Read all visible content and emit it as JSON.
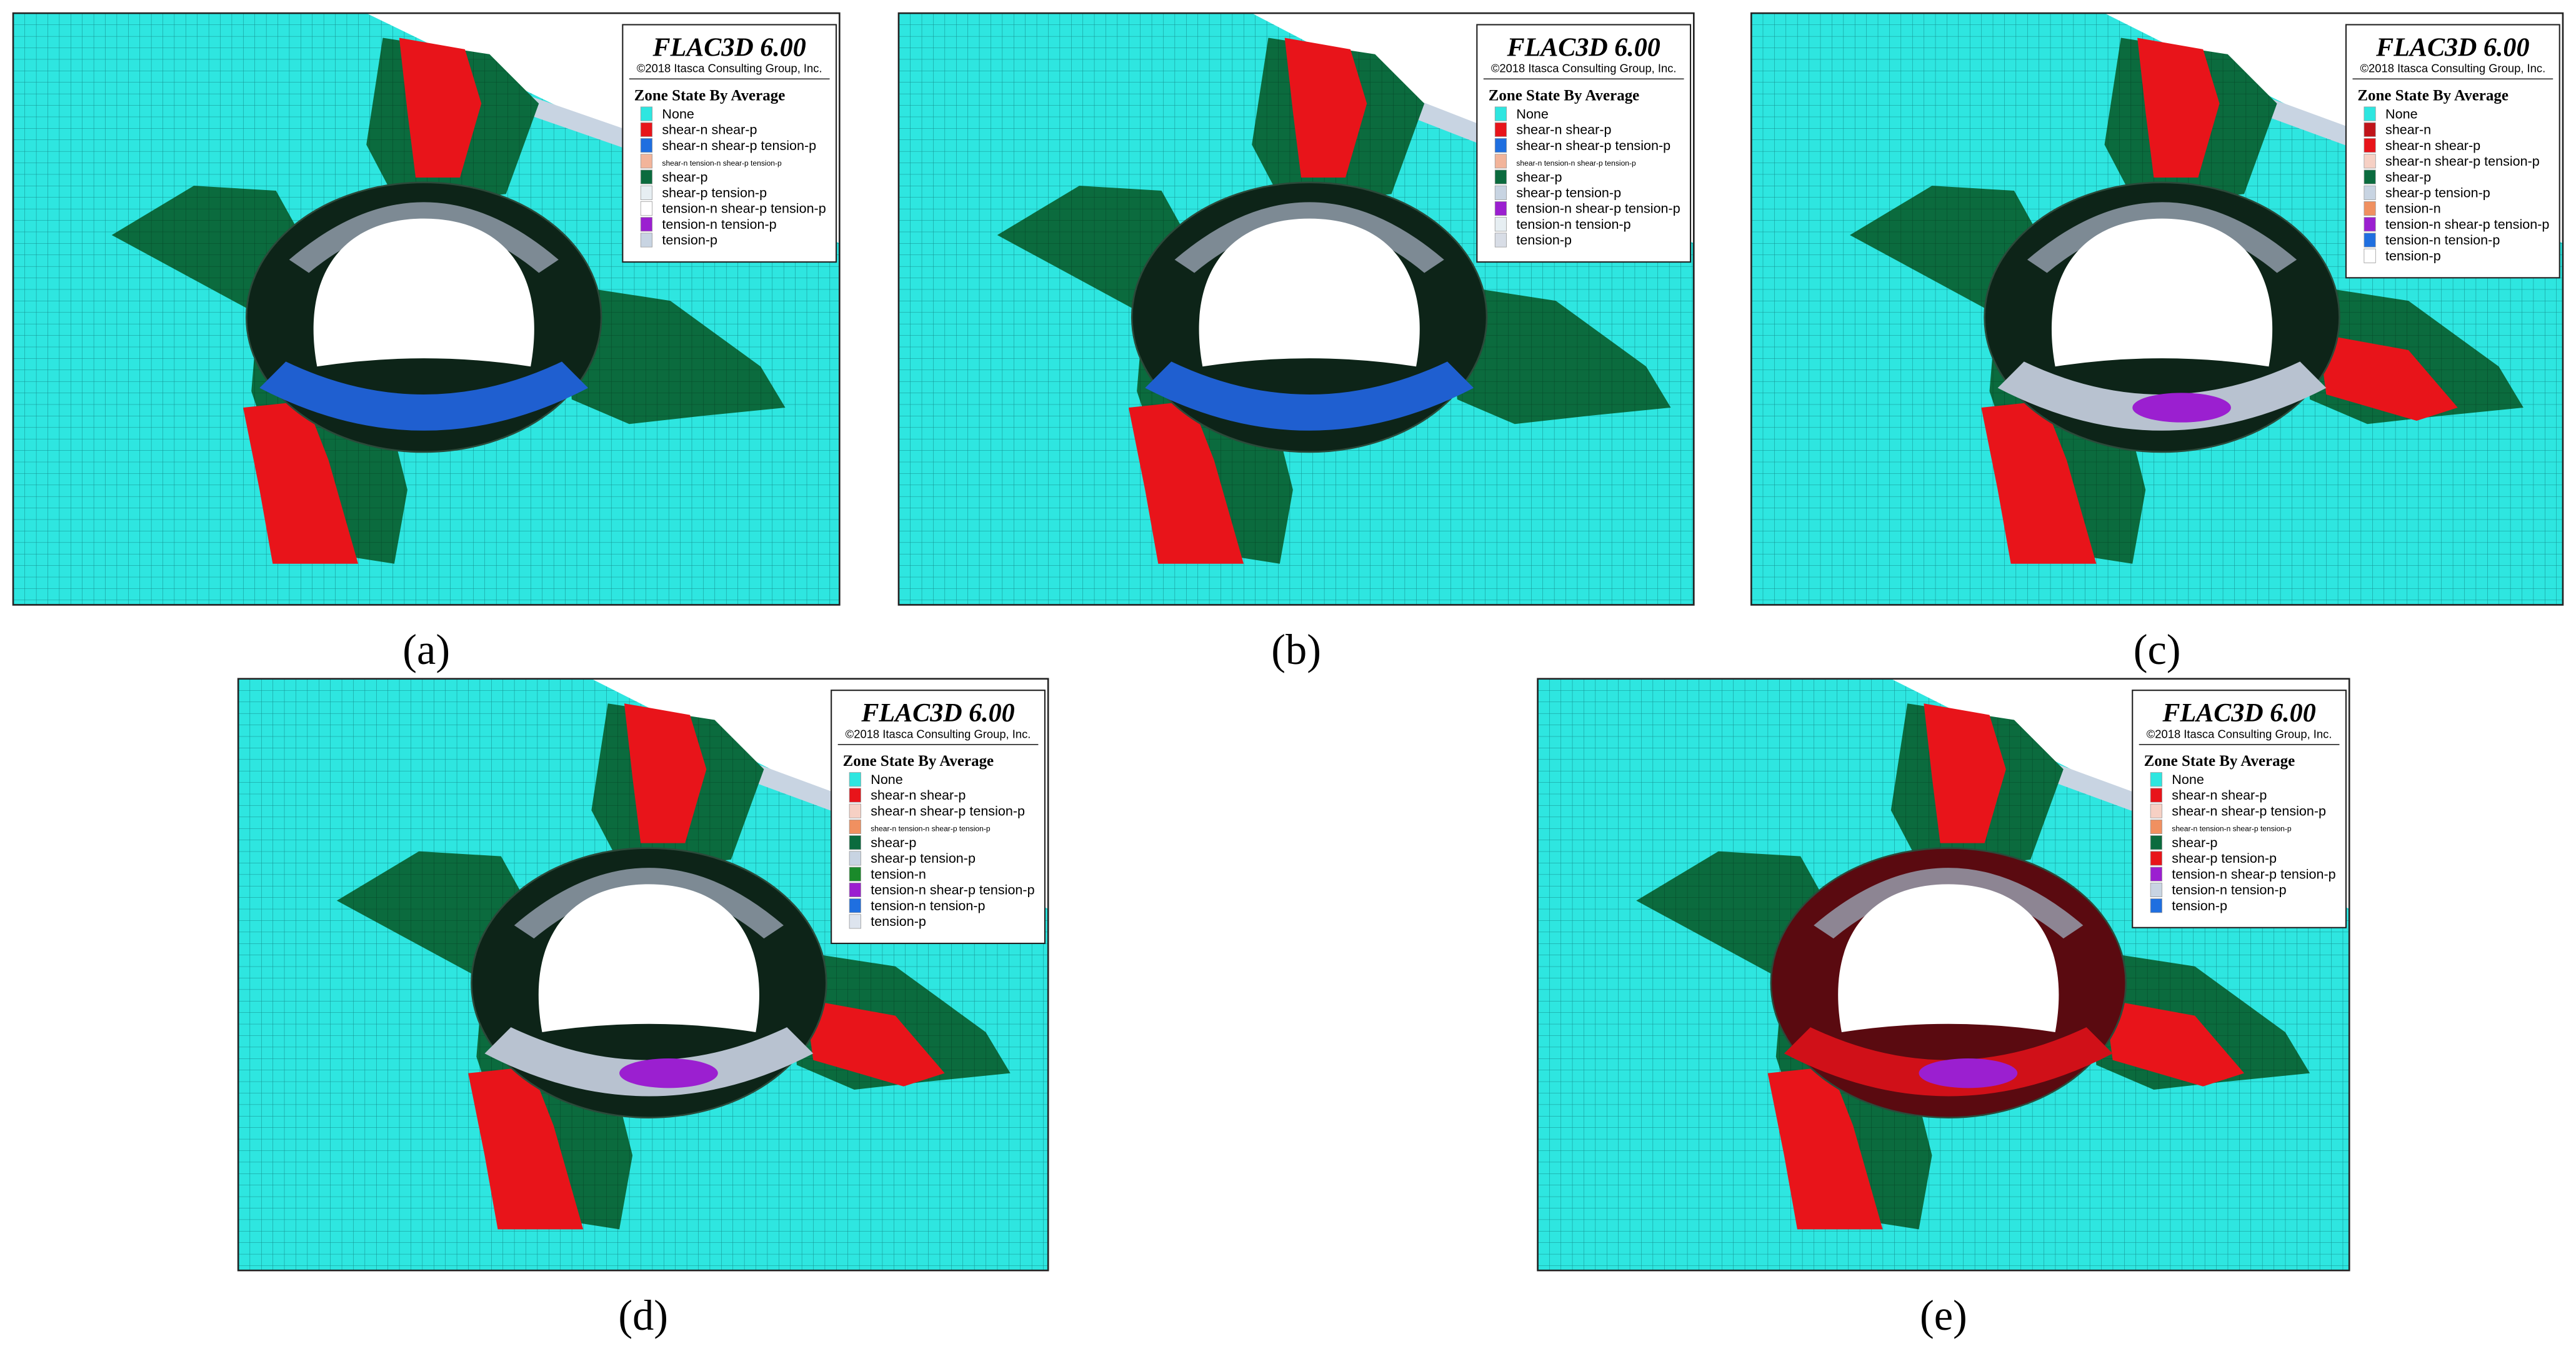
{
  "panels": [
    {
      "caption": "(a)",
      "title": "FLAC3D 6.00",
      "copyright": "©2018 Itasca Consulting Group, Inc.",
      "legend_title": "Zone State By Average",
      "legend": [
        {
          "label": "None",
          "color": "#2ee6e0"
        },
        {
          "label": "shear-n shear-p",
          "color": "#e8141a"
        },
        {
          "label": "shear-n shear-p tension-p",
          "color": "#1f6fe0"
        },
        {
          "label": "shear-n tension-n shear-p tension-p",
          "color": "#f2b49a"
        },
        {
          "label": "shear-p",
          "color": "#0b6b3e"
        },
        {
          "label": "shear-p tension-p",
          "color": "#e6eef2"
        },
        {
          "label": "tension-n shear-p tension-p",
          "color": "#ffffff"
        },
        {
          "label": "tension-n tension-p",
          "color": "#9b1fd0"
        },
        {
          "label": "tension-p",
          "color": "#c8d4e2"
        }
      ]
    },
    {
      "caption": "(b)",
      "title": "FLAC3D 6.00",
      "copyright": "©2018 Itasca Consulting Group, Inc.",
      "legend_title": "Zone State By Average",
      "legend": [
        {
          "label": "None",
          "color": "#2ee6e0"
        },
        {
          "label": "shear-n shear-p",
          "color": "#e8141a"
        },
        {
          "label": "shear-n shear-p tension-p",
          "color": "#1f6fe0"
        },
        {
          "label": "shear-n tension-n shear-p tension-p",
          "color": "#f2b49a"
        },
        {
          "label": "shear-p",
          "color": "#0b6b3e"
        },
        {
          "label": "shear-p tension-p",
          "color": "#c8d4e2"
        },
        {
          "label": "tension-n shear-p tension-p",
          "color": "#9b1fd0"
        },
        {
          "label": "tension-n tension-p",
          "color": "#e6eef2"
        },
        {
          "label": "tension-p",
          "color": "#d8dde6"
        }
      ]
    },
    {
      "caption": "(c)",
      "title": "FLAC3D 6.00",
      "copyright": "©2018 Itasca Consulting Group, Inc.",
      "legend_title": "Zone State By Average",
      "legend": [
        {
          "label": "None",
          "color": "#2ee6e0"
        },
        {
          "label": "shear-n",
          "color": "#c0141a"
        },
        {
          "label": "shear-n shear-p",
          "color": "#e8141a"
        },
        {
          "label": "shear-n shear-p tension-p",
          "color": "#f6d0c4"
        },
        {
          "label": "shear-p",
          "color": "#0b6b3e"
        },
        {
          "label": "shear-p tension-p",
          "color": "#c8d4e2"
        },
        {
          "label": "tension-n",
          "color": "#f09060"
        },
        {
          "label": "tension-n shear-p tension-p",
          "color": "#9b1fd0"
        },
        {
          "label": "tension-n tension-p",
          "color": "#1f6fe0"
        },
        {
          "label": "tension-p",
          "color": "#ffffff"
        }
      ]
    },
    {
      "caption": "(d)",
      "title": "FLAC3D 6.00",
      "copyright": "©2018 Itasca Consulting Group, Inc.",
      "legend_title": "Zone State By Average",
      "legend": [
        {
          "label": "None",
          "color": "#2ee6e0"
        },
        {
          "label": "shear-n shear-p",
          "color": "#e8141a"
        },
        {
          "label": "shear-n shear-p tension-p",
          "color": "#f6d0c4"
        },
        {
          "label": "shear-n tension-n shear-p tension-p",
          "color": "#f09060"
        },
        {
          "label": "shear-p",
          "color": "#0b6b3e"
        },
        {
          "label": "shear-p tension-p",
          "color": "#c8d4e2"
        },
        {
          "label": "tension-n",
          "color": "#1a8a2a"
        },
        {
          "label": "tension-n shear-p tension-p",
          "color": "#9b1fd0"
        },
        {
          "label": "tension-n tension-p",
          "color": "#1f6fe0"
        },
        {
          "label": "tension-p",
          "color": "#dde4ee"
        }
      ]
    },
    {
      "caption": "(e)",
      "title": "FLAC3D 6.00",
      "copyright": "©2018 Itasca Consulting Group, Inc.",
      "legend_title": "Zone State By Average",
      "legend": [
        {
          "label": "None",
          "color": "#2ee6e0"
        },
        {
          "label": "shear-n shear-p",
          "color": "#e8141a"
        },
        {
          "label": "shear-n shear-p tension-p",
          "color": "#f6d0c4"
        },
        {
          "label": "shear-n tension-n shear-p tension-p",
          "color": "#f09060"
        },
        {
          "label": "shear-p",
          "color": "#0b6b3e"
        },
        {
          "label": "shear-p tension-p",
          "color": "#e8141a"
        },
        {
          "label": "tension-n shear-p tension-p",
          "color": "#9b1fd0"
        },
        {
          "label": "tension-n tension-p",
          "color": "#c8d4e2"
        },
        {
          "label": "tension-p",
          "color": "#1f6fe0"
        }
      ]
    }
  ]
}
